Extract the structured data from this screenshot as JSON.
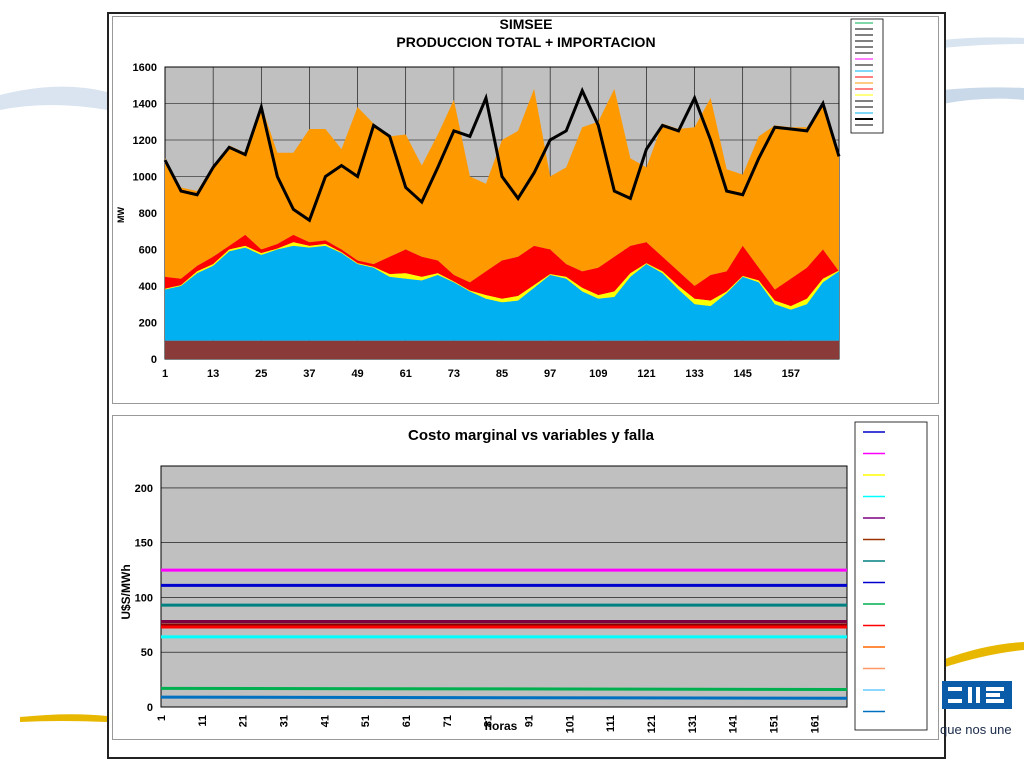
{
  "tagline": "que nos une",
  "chart_data": [
    {
      "type": "area",
      "title": "SIMSEE",
      "subtitle": "PRODUCCION TOTAL + IMPORTACION",
      "ylabel": "MW",
      "xlabel": "",
      "ylim": [
        0,
        1600
      ],
      "xlim": [
        1,
        169
      ],
      "yticks": [
        0,
        200,
        400,
        600,
        800,
        1000,
        1200,
        1400,
        1600
      ],
      "xticks": [
        1,
        13,
        25,
        37,
        49,
        61,
        73,
        85,
        97,
        109,
        121,
        133,
        145,
        157
      ],
      "grid": true,
      "legend_position": "right",
      "base_level": 100,
      "colors": {
        "base": "#8b3a3a",
        "blue": "#00b0f0",
        "yellow": "#ffff00",
        "red": "#ff0000",
        "orange": "#ff9900",
        "demand": "#000000"
      },
      "series": [
        {
          "x": [
            1,
            5,
            9,
            13,
            17,
            21,
            25,
            29,
            33,
            37,
            41,
            45,
            49,
            53,
            57,
            61,
            65,
            69,
            73,
            77,
            81,
            85,
            89,
            93,
            97,
            101,
            105,
            109,
            113,
            117,
            121,
            125,
            129,
            133,
            137,
            141,
            145,
            149,
            153,
            157,
            161,
            165,
            169
          ],
          "blue_top": [
            380,
            400,
            470,
            510,
            590,
            610,
            570,
            600,
            620,
            610,
            620,
            580,
            520,
            500,
            450,
            440,
            430,
            460,
            420,
            370,
            330,
            310,
            320,
            390,
            460,
            440,
            370,
            330,
            340,
            450,
            520,
            470,
            380,
            300,
            290,
            360,
            450,
            420,
            300,
            270,
            300,
            420,
            480
          ],
          "yellow_top": [
            385,
            405,
            480,
            520,
            600,
            620,
            580,
            605,
            640,
            620,
            630,
            585,
            525,
            505,
            465,
            470,
            450,
            470,
            425,
            375,
            350,
            330,
            345,
            405,
            465,
            450,
            390,
            350,
            370,
            470,
            525,
            480,
            400,
            330,
            320,
            370,
            455,
            430,
            320,
            290,
            330,
            440,
            485
          ],
          "red_top": [
            450,
            440,
            510,
            560,
            620,
            680,
            600,
            630,
            680,
            640,
            650,
            600,
            540,
            520,
            560,
            600,
            560,
            540,
            460,
            420,
            480,
            540,
            560,
            620,
            600,
            520,
            480,
            500,
            560,
            620,
            640,
            560,
            480,
            400,
            460,
            480,
            620,
            500,
            380,
            440,
            500,
            600,
            480
          ],
          "demand": [
            1090,
            920,
            900,
            1050,
            1160,
            1120,
            1380,
            1000,
            820,
            760,
            1000,
            1060,
            1000,
            1280,
            1220,
            940,
            860,
            1050,
            1250,
            1220,
            1430,
            1000,
            880,
            1020,
            1200,
            1250,
            1470,
            1280,
            920,
            880,
            1150,
            1280,
            1250,
            1430,
            1200,
            920,
            900,
            1100,
            1270,
            1260,
            1250,
            1400,
            1110
          ],
          "orange_top": [
            1100,
            940,
            920,
            1060,
            1170,
            1130,
            1390,
            1130,
            1130,
            1260,
            1260,
            1150,
            1380,
            1290,
            1220,
            1230,
            1060,
            1230,
            1420,
            1000,
            960,
            1200,
            1250,
            1480,
            1000,
            1050,
            1270,
            1300,
            1480,
            1100,
            1050,
            1290,
            1260,
            1270,
            1430,
            1040,
            1010,
            1220,
            1280,
            1270,
            1270,
            1400,
            1110
          ]
        }
      ]
    },
    {
      "type": "line",
      "title": "Costo marginal  vs variables y falla",
      "xlabel": "horas",
      "ylabel": "U$S/MWh",
      "ylim": [
        0,
        220
      ],
      "xlim": [
        1,
        169
      ],
      "yticks": [
        0,
        50,
        100,
        150,
        200
      ],
      "xticks": [
        1,
        11,
        21,
        31,
        41,
        51,
        61,
        71,
        81,
        91,
        101,
        111,
        121,
        131,
        141,
        151,
        161
      ],
      "grid": true,
      "legend_position": "right",
      "series": [
        {
          "color": "#ff00ff",
          "values": [
            125,
            125
          ]
        },
        {
          "color": "#0000cc",
          "values": [
            111,
            111
          ]
        },
        {
          "color": "#008080",
          "values": [
            93,
            93
          ]
        },
        {
          "color": "#7f0040",
          "values": [
            78,
            78
          ]
        },
        {
          "color": "#8b0000",
          "values": [
            75,
            75
          ]
        },
        {
          "color": "#ff0000",
          "values": [
            73,
            73
          ]
        },
        {
          "color": "#00ffff",
          "values": [
            64,
            64
          ]
        },
        {
          "color": "#00b050",
          "values": [
            17,
            16
          ]
        },
        {
          "color": "#0070c0",
          "values": [
            9,
            8
          ]
        }
      ]
    }
  ]
}
